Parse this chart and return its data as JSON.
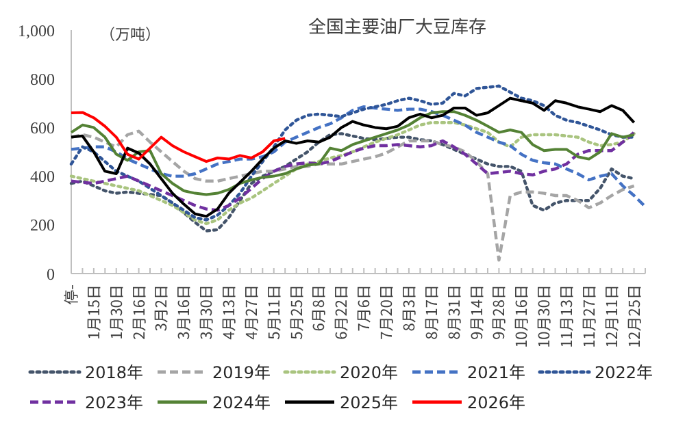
{
  "chart_data": {
    "type": "line",
    "title": "全国主要油厂大豆库存",
    "ylabel": "（万吨）",
    "legend": "bottom",
    "grid": false,
    "marker": "none",
    "categories": [
      "停-",
      null,
      "1月15日",
      null,
      "1月30日",
      null,
      "2月16日",
      null,
      "3月2日",
      null,
      "3月16日",
      null,
      "3月30日",
      null,
      "4月13日",
      null,
      "4月27日",
      null,
      "5月11日",
      null,
      "5月25日",
      null,
      "6月8日",
      null,
      "6月22日",
      null,
      "7月6日",
      null,
      "7月20日",
      null,
      "8月3日",
      null,
      "8月17日",
      null,
      "8月31日",
      null,
      "9月14日",
      null,
      "9月28日",
      null,
      "10月16日",
      null,
      "10月30日",
      null,
      "11月13日",
      null,
      "11月27日",
      null,
      "12月11日",
      null,
      "12月25日",
      null
    ],
    "ylim": [
      0,
      1000
    ],
    "yticks": [
      0,
      200,
      400,
      600,
      800,
      {
        "value": 1000,
        "label": "1,000"
      }
    ],
    "series": [
      {
        "name": "2018年",
        "color": "#44546a",
        "line_style": "dotted",
        "values": [
          370,
          380,
          360,
          340,
          330,
          335,
          330,
          325,
          320,
          290,
          250,
          210,
          175,
          180,
          230,
          300,
          370,
          400,
          420,
          440,
          470,
          500,
          540,
          570,
          575,
          565,
          555,
          550,
          555,
          560,
          560,
          550,
          545,
          530,
          510,
          490,
          470,
          450,
          440,
          440,
          420,
          280,
          260,
          290,
          300,
          300,
          300,
          350,
          430,
          400,
          390,
          null
        ]
      },
      {
        "name": "2019年",
        "color": "#a5a5a5",
        "line_style": "dashed",
        "values": [
          560,
          570,
          560,
          540,
          520,
          570,
          585,
          540,
          500,
          460,
          420,
          390,
          380,
          380,
          390,
          400,
          410,
          420,
          420,
          430,
          440,
          440,
          450,
          450,
          450,
          460,
          470,
          480,
          495,
          520,
          545,
          545,
          545,
          530,
          520,
          500,
          460,
          410,
          55,
          320,
          335,
          335,
          330,
          320,
          320,
          300,
          270,
          290,
          320,
          345,
          360,
          null
        ]
      },
      {
        "name": "2020年",
        "color": "#a9c47f",
        "line_style": "dotted",
        "values": [
          400,
          390,
          380,
          370,
          360,
          350,
          340,
          320,
          300,
          280,
          250,
          220,
          205,
          220,
          260,
          290,
          310,
          340,
          370,
          400,
          430,
          450,
          460,
          475,
          485,
          500,
          520,
          540,
          555,
          570,
          590,
          610,
          620,
          620,
          620,
          610,
          595,
          580,
          540,
          520,
          560,
          570,
          570,
          570,
          565,
          560,
          540,
          525,
          530,
          540,
          575,
          null
        ]
      },
      {
        "name": "2021年",
        "color": "#4472c4",
        "line_style": "dashed",
        "values": [
          510,
          515,
          520,
          520,
          500,
          470,
          450,
          430,
          410,
          400,
          400,
          410,
          430,
          450,
          460,
          470,
          470,
          480,
          500,
          540,
          560,
          580,
          600,
          615,
          640,
          670,
          685,
          680,
          675,
          670,
          675,
          675,
          665,
          650,
          630,
          610,
          580,
          560,
          540,
          525,
          490,
          465,
          455,
          450,
          430,
          410,
          385,
          400,
          410,
          360,
          320,
          275
        ]
      },
      {
        "name": "2022年",
        "color": "#2f5597",
        "line_style": "dotted",
        "values": [
          450,
          520,
          500,
          460,
          420,
          400,
          380,
          350,
          320,
          290,
          260,
          230,
          220,
          240,
          280,
          330,
          400,
          460,
          520,
          590,
          630,
          650,
          655,
          650,
          645,
          660,
          675,
          685,
          695,
          710,
          720,
          710,
          695,
          700,
          740,
          730,
          760,
          765,
          770,
          745,
          720,
          710,
          690,
          650,
          630,
          620,
          605,
          590,
          570,
          560,
          560,
          null
        ]
      },
      {
        "name": "2023年",
        "color": "#7030a0",
        "line_style": "dashed",
        "values": [
          380,
          375,
          370,
          380,
          390,
          400,
          380,
          360,
          340,
          320,
          300,
          280,
          265,
          260,
          280,
          310,
          350,
          390,
          420,
          440,
          450,
          455,
          450,
          460,
          480,
          500,
          515,
          525,
          525,
          530,
          525,
          520,
          525,
          545,
          520,
          490,
          450,
          410,
          415,
          420,
          410,
          405,
          420,
          430,
          450,
          490,
          505,
          505,
          505,
          540,
          580,
          null
        ]
      },
      {
        "name": "2024年",
        "color": "#548235",
        "line_style": "solid",
        "values": [
          580,
          610,
          600,
          560,
          490,
          465,
          500,
          505,
          410,
          370,
          340,
          330,
          325,
          330,
          345,
          370,
          385,
          395,
          400,
          410,
          430,
          445,
          450,
          515,
          505,
          530,
          545,
          560,
          575,
          590,
          610,
          640,
          660,
          665,
          665,
          650,
          630,
          605,
          580,
          590,
          580,
          530,
          505,
          510,
          510,
          480,
          470,
          500,
          575,
          560,
          570,
          null
        ]
      },
      {
        "name": "2025年",
        "color": "#000000",
        "line_style": "solid",
        "values": [
          560,
          565,
          500,
          420,
          410,
          515,
          495,
          450,
          390,
          330,
          285,
          245,
          235,
          265,
          330,
          375,
          420,
          470,
          515,
          545,
          535,
          545,
          540,
          560,
          600,
          625,
          610,
          600,
          595,
          605,
          640,
          655,
          640,
          650,
          680,
          680,
          650,
          660,
          690,
          720,
          710,
          700,
          670,
          710,
          700,
          685,
          675,
          665,
          690,
          670,
          620,
          null
        ]
      },
      {
        "name": "2026年",
        "color": "#ff0000",
        "line_style": "solid",
        "values": [
          660,
          662,
          640,
          605,
          560,
          490,
          470,
          515,
          560,
          525,
          500,
          480,
          460,
          475,
          470,
          485,
          475,
          500,
          545,
          555,
          null,
          null,
          null,
          null,
          null,
          null,
          null,
          null,
          null,
          null,
          null,
          null,
          null,
          null,
          null,
          null,
          null,
          null,
          null,
          null,
          null,
          null,
          null,
          null,
          null,
          null,
          null,
          null,
          null,
          null,
          null,
          null
        ]
      }
    ]
  }
}
